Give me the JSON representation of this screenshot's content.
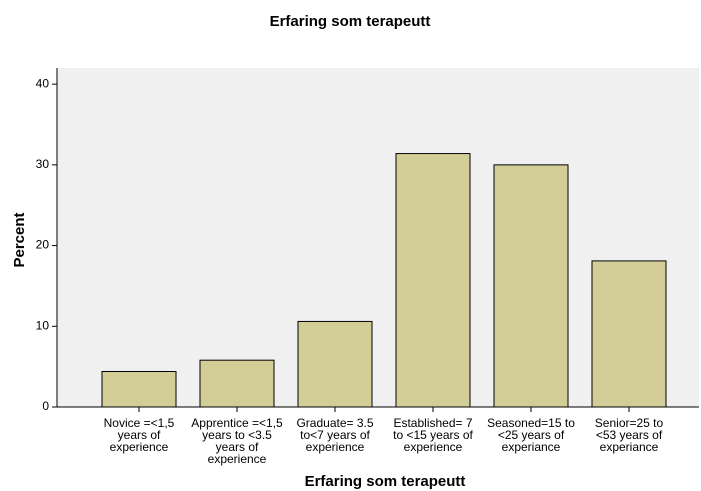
{
  "chart_data": {
    "type": "bar",
    "title": "Erfaring som terapeutt",
    "x_label": "Erfaring som terapeutt",
    "y_label": "Percent",
    "categories": [
      "Novice =<1,5 years of experience",
      "Apprentice =<1,5 years to <3.5 years of experience",
      "Graduate= 3.5 to<7 years of experience",
      "Established= 7 to <15 years of experience",
      "Seasoned=15 to <25 years of experiance",
      "Senior=25 to <53 years of experiance"
    ],
    "values": [
      4.4,
      5.8,
      10.6,
      31.4,
      30.0,
      18.1
    ],
    "color": "#d3ce98",
    "ylim": [
      0,
      42
    ],
    "yticks": [
      0,
      10,
      20,
      30,
      40
    ],
    "grid": false
  }
}
